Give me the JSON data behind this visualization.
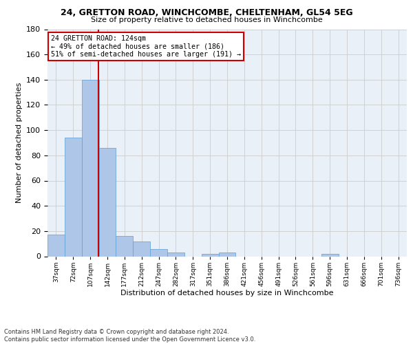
{
  "title_line1": "24, GRETTON ROAD, WINCHCOMBE, CHELTENHAM, GL54 5EG",
  "title_line2": "Size of property relative to detached houses in Winchcombe",
  "xlabel": "Distribution of detached houses by size in Winchcombe",
  "ylabel": "Number of detached properties",
  "footnote": "Contains HM Land Registry data © Crown copyright and database right 2024.\nContains public sector information licensed under the Open Government Licence v3.0.",
  "bar_values": [
    17,
    94,
    140,
    86,
    16,
    12,
    6,
    3,
    0,
    2,
    3,
    0,
    0,
    0,
    0,
    0,
    2,
    0,
    0,
    0,
    0
  ],
  "bin_labels": [
    "37sqm",
    "72sqm",
    "107sqm",
    "142sqm",
    "177sqm",
    "212sqm",
    "247sqm",
    "282sqm",
    "317sqm",
    "351sqm",
    "386sqm",
    "421sqm",
    "456sqm",
    "491sqm",
    "526sqm",
    "561sqm",
    "596sqm",
    "631sqm",
    "666sqm",
    "701sqm",
    "736sqm"
  ],
  "bar_color": "#aec6e8",
  "bar_edge_color": "#5a9fd4",
  "grid_color": "#cccccc",
  "bg_color": "#eaf0f8",
  "vline_color": "#cc0000",
  "vline_x": 2.47,
  "annotation_text": "24 GRETTON ROAD: 124sqm\n← 49% of detached houses are smaller (186)\n51% of semi-detached houses are larger (191) →",
  "annotation_box_color": "#cc0000",
  "ylim": [
    0,
    180
  ],
  "yticks": [
    0,
    20,
    40,
    60,
    80,
    100,
    120,
    140,
    160,
    180
  ]
}
